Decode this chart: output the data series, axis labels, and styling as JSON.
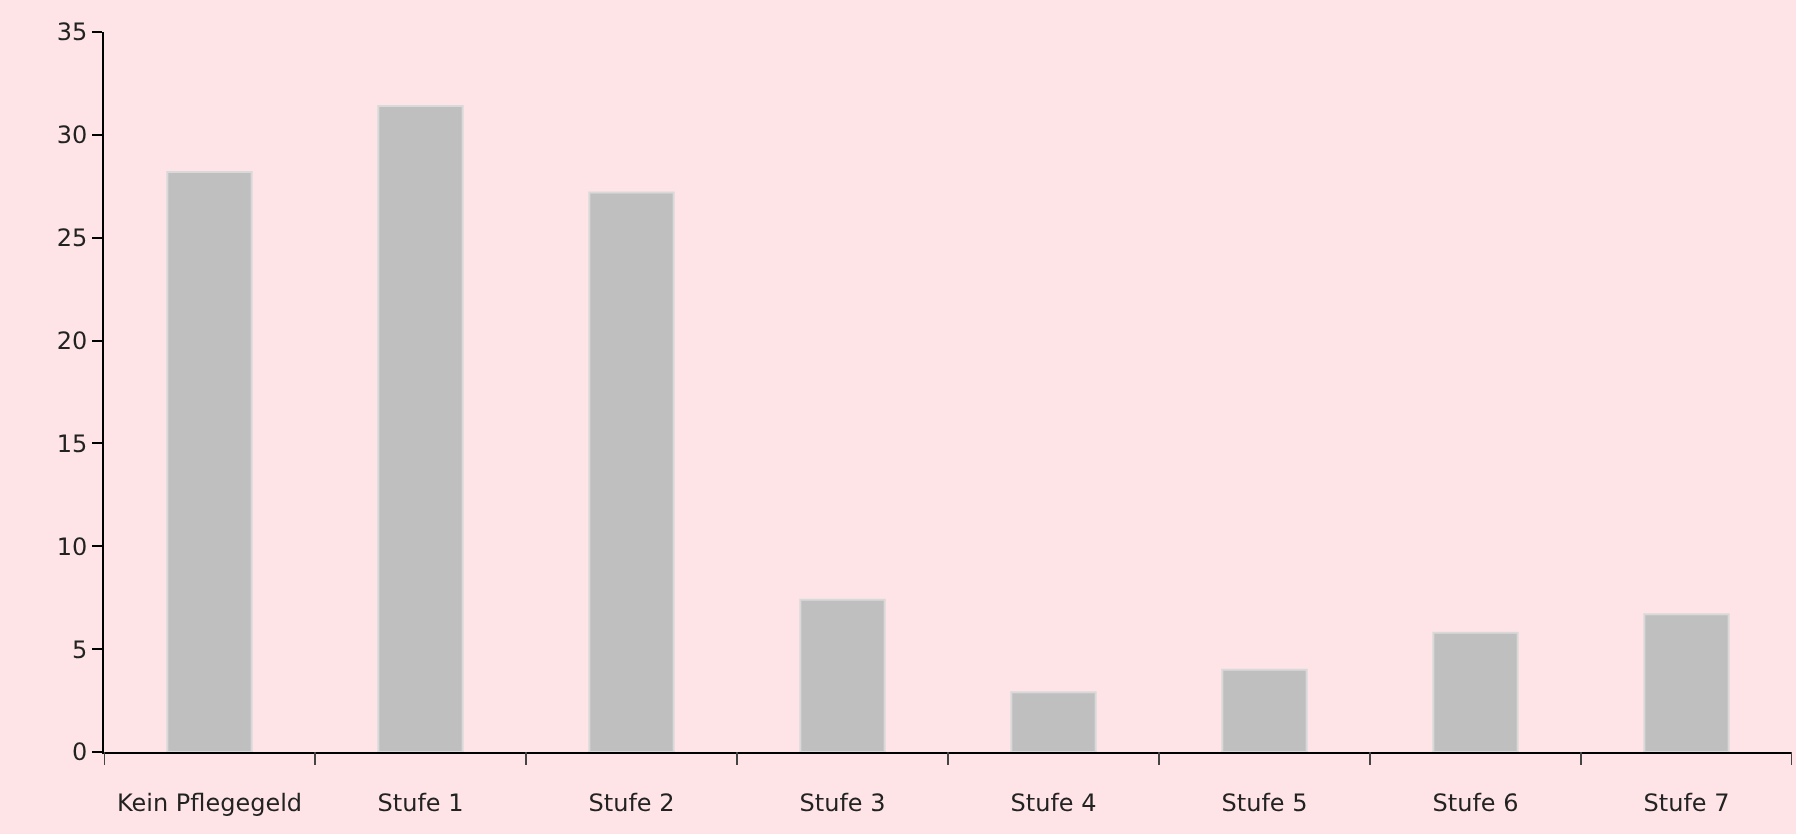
{
  "chart_data": {
    "type": "bar",
    "categories": [
      "Kein Pflegegeld",
      "Stufe 1",
      "Stufe 2",
      "Stufe 3",
      "Stufe 4",
      "Stufe 5",
      "Stufe 6",
      "Stufe 7"
    ],
    "values": [
      28.2,
      31.4,
      27.2,
      7.4,
      2.9,
      4.0,
      5.8,
      6.7
    ],
    "color": "#bfbfbf",
    "ylim": [
      0,
      35
    ],
    "yticks": [
      0,
      5,
      10,
      15,
      20,
      25,
      30,
      35
    ],
    "grid": false
  }
}
